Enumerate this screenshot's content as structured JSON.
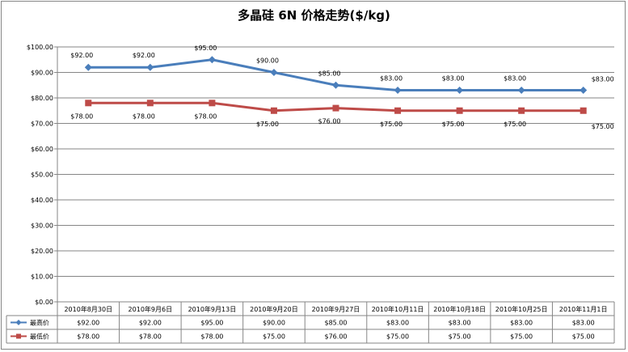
{
  "chart_data": {
    "type": "line",
    "title": "多晶硅 6N 价格走势($/kg)",
    "categories": [
      "2010年8月30日",
      "2010年9月6日",
      "2010年9月13日",
      "2010年9月20日",
      "2010年9月27日",
      "2010年10月11日",
      "2010年10月18日",
      "2010年10月25日",
      "2010年11月1日"
    ],
    "series": [
      {
        "name": "最高价",
        "color": "#4a7ebb",
        "marker": "diamond",
        "values": [
          92,
          92,
          95,
          90,
          85,
          83,
          83,
          83,
          83
        ],
        "labels": [
          "$92.00",
          "$92.00",
          "$95.00",
          "$90.00",
          "$85.00",
          "$83.00",
          "$83.00",
          "$83.00",
          "$83.00"
        ]
      },
      {
        "name": "最低价",
        "color": "#be4b48",
        "marker": "square",
        "values": [
          78,
          78,
          78,
          75,
          76,
          75,
          75,
          75,
          75
        ],
        "labels": [
          "$78.00",
          "$78.00",
          "$78.00",
          "$75.00",
          "$76.00",
          "$75.00",
          "$75.00",
          "$75.00",
          "$75.00"
        ]
      }
    ],
    "ylim": [
      0,
      100
    ],
    "ytick_labels": [
      "$0.00",
      "$10.00",
      "$20.00",
      "$30.00",
      "$40.00",
      "$50.00",
      "$60.00",
      "$70.00",
      "$80.00",
      "$90.00",
      "$100.00"
    ],
    "xlabel": "",
    "ylabel": "",
    "grid": true,
    "legend": "data-table-below",
    "data_table": true
  }
}
